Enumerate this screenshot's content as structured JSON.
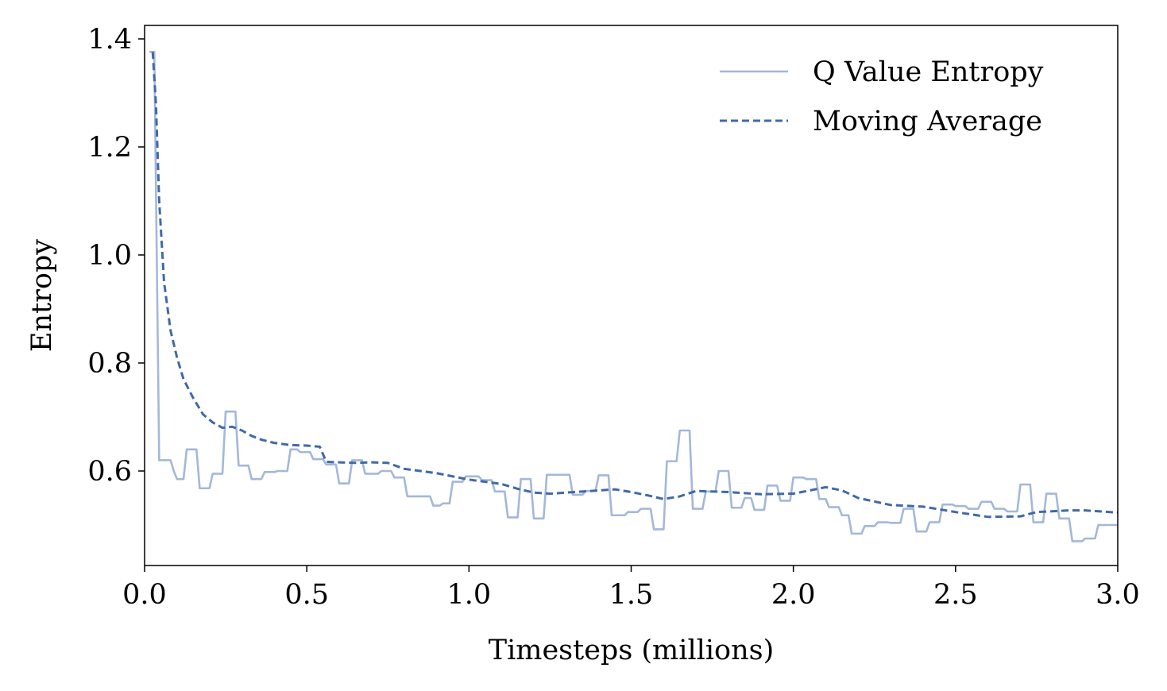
{
  "chart_data": {
    "type": "line",
    "xlabel": "Timesteps (millions)",
    "ylabel": "Entropy",
    "xlim": [
      0.0,
      3.0
    ],
    "ylim": [
      0.425,
      1.425
    ],
    "x_ticks": [
      0.0,
      0.5,
      1.0,
      1.5,
      2.0,
      2.5,
      3.0
    ],
    "x_tick_labels": [
      "0.0",
      "0.5",
      "1.0",
      "1.5",
      "2.0",
      "2.5",
      "3.0"
    ],
    "y_ticks": [
      0.6,
      0.8,
      1.0,
      1.2,
      1.4
    ],
    "y_tick_labels": [
      "0.6",
      "0.8",
      "1.0",
      "1.2",
      "1.4"
    ],
    "grid": false,
    "legend_position": "top-right",
    "series": [
      {
        "name": "Q Value Entropy",
        "style": "solid",
        "color": "#a3b8d9",
        "step": true,
        "points": [
          [
            0.015,
            1.376
          ],
          [
            0.03,
            1.376
          ],
          [
            0.045,
            0.62
          ],
          [
            0.08,
            0.62
          ],
          [
            0.09,
            0.6
          ],
          [
            0.1,
            0.585
          ],
          [
            0.12,
            0.585
          ],
          [
            0.13,
            0.64
          ],
          [
            0.16,
            0.64
          ],
          [
            0.17,
            0.568
          ],
          [
            0.2,
            0.568
          ],
          [
            0.21,
            0.595
          ],
          [
            0.24,
            0.595
          ],
          [
            0.25,
            0.71
          ],
          [
            0.28,
            0.71
          ],
          [
            0.29,
            0.61
          ],
          [
            0.32,
            0.61
          ],
          [
            0.33,
            0.585
          ],
          [
            0.36,
            0.585
          ],
          [
            0.37,
            0.598
          ],
          [
            0.4,
            0.598
          ],
          [
            0.41,
            0.6
          ],
          [
            0.44,
            0.6
          ],
          [
            0.45,
            0.64
          ],
          [
            0.47,
            0.64
          ],
          [
            0.48,
            0.635
          ],
          [
            0.51,
            0.635
          ],
          [
            0.52,
            0.622
          ],
          [
            0.55,
            0.622
          ],
          [
            0.56,
            0.612
          ],
          [
            0.59,
            0.612
          ],
          [
            0.6,
            0.577
          ],
          [
            0.63,
            0.577
          ],
          [
            0.64,
            0.62
          ],
          [
            0.67,
            0.62
          ],
          [
            0.68,
            0.595
          ],
          [
            0.72,
            0.595
          ],
          [
            0.73,
            0.6
          ],
          [
            0.76,
            0.6
          ],
          [
            0.77,
            0.588
          ],
          [
            0.8,
            0.588
          ],
          [
            0.81,
            0.553
          ],
          [
            0.88,
            0.553
          ],
          [
            0.89,
            0.536
          ],
          [
            0.91,
            0.536
          ],
          [
            0.92,
            0.54
          ],
          [
            0.94,
            0.54
          ],
          [
            0.95,
            0.58
          ],
          [
            0.98,
            0.58
          ],
          [
            0.99,
            0.59
          ],
          [
            1.03,
            0.59
          ],
          [
            1.04,
            0.583
          ],
          [
            1.07,
            0.583
          ],
          [
            1.08,
            0.562
          ],
          [
            1.11,
            0.562
          ],
          [
            1.12,
            0.514
          ],
          [
            1.15,
            0.514
          ],
          [
            1.16,
            0.585
          ],
          [
            1.19,
            0.585
          ],
          [
            1.2,
            0.512
          ],
          [
            1.23,
            0.512
          ],
          [
            1.24,
            0.593
          ],
          [
            1.31,
            0.593
          ],
          [
            1.32,
            0.556
          ],
          [
            1.35,
            0.556
          ],
          [
            1.36,
            0.563
          ],
          [
            1.39,
            0.563
          ],
          [
            1.4,
            0.592
          ],
          [
            1.43,
            0.592
          ],
          [
            1.44,
            0.518
          ],
          [
            1.48,
            0.518
          ],
          [
            1.49,
            0.524
          ],
          [
            1.52,
            0.524
          ],
          [
            1.53,
            0.53
          ],
          [
            1.56,
            0.53
          ],
          [
            1.57,
            0.492
          ],
          [
            1.6,
            0.492
          ],
          [
            1.61,
            0.618
          ],
          [
            1.64,
            0.618
          ],
          [
            1.65,
            0.675
          ],
          [
            1.68,
            0.675
          ],
          [
            1.69,
            0.53
          ],
          [
            1.72,
            0.53
          ],
          [
            1.73,
            0.562
          ],
          [
            1.76,
            0.562
          ],
          [
            1.77,
            0.6
          ],
          [
            1.8,
            0.6
          ],
          [
            1.81,
            0.532
          ],
          [
            1.84,
            0.532
          ],
          [
            1.85,
            0.55
          ],
          [
            1.87,
            0.55
          ],
          [
            1.88,
            0.528
          ],
          [
            1.91,
            0.528
          ],
          [
            1.92,
            0.573
          ],
          [
            1.95,
            0.573
          ],
          [
            1.96,
            0.545
          ],
          [
            1.99,
            0.545
          ],
          [
            2.0,
            0.588
          ],
          [
            2.03,
            0.588
          ],
          [
            2.04,
            0.585
          ],
          [
            2.07,
            0.585
          ],
          [
            2.08,
            0.548
          ],
          [
            2.1,
            0.548
          ],
          [
            2.11,
            0.533
          ],
          [
            2.14,
            0.533
          ],
          [
            2.15,
            0.518
          ],
          [
            2.17,
            0.518
          ],
          [
            2.18,
            0.484
          ],
          [
            2.21,
            0.484
          ],
          [
            2.22,
            0.498
          ],
          [
            2.25,
            0.498
          ],
          [
            2.26,
            0.505
          ],
          [
            2.29,
            0.505
          ],
          [
            2.3,
            0.504
          ],
          [
            2.33,
            0.504
          ],
          [
            2.34,
            0.53
          ],
          [
            2.37,
            0.53
          ],
          [
            2.38,
            0.488
          ],
          [
            2.41,
            0.488
          ],
          [
            2.42,
            0.505
          ],
          [
            2.45,
            0.505
          ],
          [
            2.46,
            0.538
          ],
          [
            2.49,
            0.538
          ],
          [
            2.5,
            0.535
          ],
          [
            2.53,
            0.535
          ],
          [
            2.54,
            0.53
          ],
          [
            2.57,
            0.53
          ],
          [
            2.58,
            0.543
          ],
          [
            2.61,
            0.543
          ],
          [
            2.62,
            0.53
          ],
          [
            2.65,
            0.53
          ],
          [
            2.66,
            0.525
          ],
          [
            2.69,
            0.525
          ],
          [
            2.7,
            0.575
          ],
          [
            2.73,
            0.575
          ],
          [
            2.74,
            0.505
          ],
          [
            2.77,
            0.505
          ],
          [
            2.78,
            0.558
          ],
          [
            2.81,
            0.558
          ],
          [
            2.82,
            0.512
          ],
          [
            2.85,
            0.512
          ],
          [
            2.86,
            0.47
          ],
          [
            2.89,
            0.47
          ],
          [
            2.9,
            0.475
          ],
          [
            2.93,
            0.475
          ],
          [
            2.94,
            0.5
          ],
          [
            3.0,
            0.5
          ]
        ]
      },
      {
        "name": "Moving Average",
        "style": "dashed",
        "color": "#4169a8",
        "step": false,
        "points": [
          [
            0.025,
            1.376
          ],
          [
            0.035,
            1.28
          ],
          [
            0.045,
            1.1
          ],
          [
            0.06,
            0.95
          ],
          [
            0.08,
            0.86
          ],
          [
            0.1,
            0.81
          ],
          [
            0.12,
            0.77
          ],
          [
            0.15,
            0.735
          ],
          [
            0.18,
            0.705
          ],
          [
            0.21,
            0.69
          ],
          [
            0.24,
            0.68
          ],
          [
            0.27,
            0.682
          ],
          [
            0.3,
            0.675
          ],
          [
            0.33,
            0.665
          ],
          [
            0.36,
            0.658
          ],
          [
            0.4,
            0.652
          ],
          [
            0.45,
            0.648
          ],
          [
            0.5,
            0.647
          ],
          [
            0.54,
            0.645
          ],
          [
            0.56,
            0.617
          ],
          [
            0.6,
            0.616
          ],
          [
            0.65,
            0.615
          ],
          [
            0.7,
            0.616
          ],
          [
            0.75,
            0.615
          ],
          [
            0.8,
            0.604
          ],
          [
            0.9,
            0.596
          ],
          [
            1.0,
            0.584
          ],
          [
            1.1,
            0.576
          ],
          [
            1.15,
            0.567
          ],
          [
            1.2,
            0.56
          ],
          [
            1.25,
            0.558
          ],
          [
            1.3,
            0.56
          ],
          [
            1.35,
            0.562
          ],
          [
            1.4,
            0.564
          ],
          [
            1.45,
            0.566
          ],
          [
            1.5,
            0.561
          ],
          [
            1.55,
            0.555
          ],
          [
            1.6,
            0.548
          ],
          [
            1.65,
            0.553
          ],
          [
            1.7,
            0.563
          ],
          [
            1.8,
            0.561
          ],
          [
            1.9,
            0.557
          ],
          [
            2.0,
            0.558
          ],
          [
            2.05,
            0.564
          ],
          [
            2.1,
            0.57
          ],
          [
            2.15,
            0.564
          ],
          [
            2.2,
            0.55
          ],
          [
            2.3,
            0.537
          ],
          [
            2.4,
            0.534
          ],
          [
            2.5,
            0.524
          ],
          [
            2.6,
            0.515
          ],
          [
            2.7,
            0.516
          ],
          [
            2.75,
            0.524
          ],
          [
            2.85,
            0.527
          ],
          [
            2.9,
            0.527
          ],
          [
            3.0,
            0.523
          ]
        ]
      }
    ]
  }
}
